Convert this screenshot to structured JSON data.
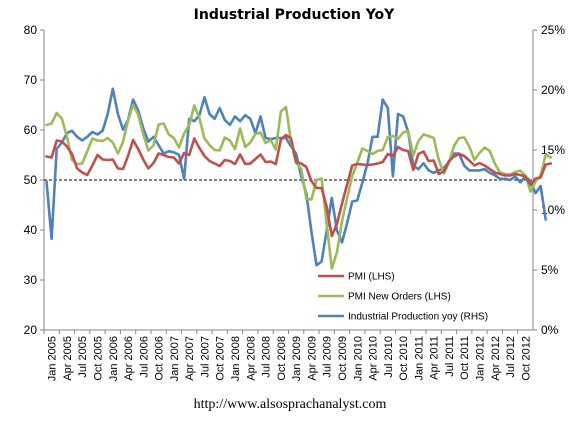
{
  "chart_data": {
    "type": "line",
    "title": "Industrial Production YoY",
    "source_text": "http://www.alsosprachanalyst.com",
    "x_labels": [
      "Jan 2005",
      "Apr 2005",
      "Jul 2005",
      "Oct 2005",
      "Jan 2006",
      "Apr 2006",
      "Jul 2006",
      "Oct 2006",
      "Jan 2007",
      "Apr 2007",
      "Jul 2007",
      "Oct 2007",
      "Jan 2008",
      "Apr 2008",
      "Jul 2008",
      "Oct 2008",
      "Jan 2009",
      "Apr 2009",
      "Jul 2009",
      "Oct 2009",
      "Jan 2010",
      "Apr 2010",
      "Jul 2010",
      "Oct 2010",
      "Jan 2011",
      "Apr 2011",
      "Jul 2011",
      "Oct 2011",
      "Jan 2012",
      "Apr 2012",
      "Jul 2012",
      "Oct 2012"
    ],
    "y_left": {
      "min": 20,
      "max": 80,
      "ticks": [
        20,
        30,
        40,
        50,
        60,
        70,
        80
      ]
    },
    "y_right": {
      "min": 0,
      "max": 25,
      "ticks": [
        "0%",
        "5%",
        "10%",
        "15%",
        "20%",
        "25%"
      ]
    },
    "reference_line": 50,
    "legend_position": "bottom-right",
    "series": [
      {
        "name": "PMI (LHS)",
        "axis": "left",
        "color": "#c0504d",
        "values": [
          54.7,
          54.5,
          57.9,
          57.7,
          56.7,
          55.2,
          52.3,
          51.5,
          51.0,
          52.9,
          55.0,
          54.1,
          54.0,
          54.1,
          52.3,
          52.2,
          54.8,
          58.0,
          56.2,
          54.1,
          52.3,
          53.4,
          55.3,
          55.0,
          54.6,
          54.5,
          53.3,
          55.4,
          55.0,
          58.3,
          56.4,
          54.8,
          53.8,
          53.3,
          52.8,
          54.0,
          53.8,
          53.2,
          55.1,
          53.2,
          53.3,
          54.2,
          55.1,
          53.6,
          53.7,
          53.2,
          58.1,
          59.0,
          58.3,
          53.6,
          53.3,
          52.6,
          49.8,
          48.4,
          48.4,
          44.6,
          38.8,
          41.2,
          45.3,
          49.1,
          52.9,
          53.2,
          53.1,
          53.0,
          53.1,
          53.3,
          53.6,
          55.2,
          54.8,
          56.6,
          56.0,
          55.8,
          52.0,
          55.2,
          55.7,
          53.8,
          53.9,
          51.2,
          51.7,
          53.8,
          54.7,
          55.2,
          54.8,
          53.9,
          52.9,
          53.4,
          52.9,
          52.2,
          51.5,
          51.2,
          50.9,
          50.9,
          51.2,
          51.0,
          50.7,
          49.0,
          50.3,
          50.5,
          53.1,
          53.3
        ]
      },
      {
        "name": "PMI New Orders (LHS)",
        "axis": "left",
        "color": "#9bbb59",
        "values": [
          61.0,
          61.3,
          63.4,
          62.3,
          58.7,
          54.0,
          53.2,
          53.3,
          55.8,
          58.3,
          57.9,
          57.8,
          58.4,
          57.5,
          55.3,
          57.6,
          61.9,
          65.0,
          63.1,
          59.1,
          55.9,
          56.9,
          61.1,
          61.3,
          59.1,
          58.4,
          56.5,
          59.3,
          61.0,
          64.9,
          62.4,
          58.3,
          57.0,
          56.0,
          55.9,
          58.5,
          57.9,
          56.2,
          60.3,
          56.6,
          57.5,
          59.2,
          59.5,
          57.4,
          58.0,
          56.1,
          63.7,
          64.6,
          57.6,
          53.4,
          52.3,
          46.3,
          46.1,
          50.0,
          50.3,
          41.2,
          32.3,
          35.5,
          41.7,
          46.4,
          50.8,
          53.5,
          56.3,
          55.8,
          55.2,
          55.8,
          56.0,
          58.6,
          58.8,
          58.2,
          59.5,
          59.8,
          54.9,
          57.8,
          59.1,
          58.8,
          58.4,
          54.0,
          51.3,
          53.5,
          56.8,
          58.4,
          58.5,
          56.7,
          54.0,
          55.4,
          56.5,
          55.8,
          53.3,
          51.5,
          51.2,
          51.1,
          51.6,
          51.9,
          50.9,
          47.7,
          49.7,
          50.9,
          55.1,
          54.5
        ]
      },
      {
        "name": "Industrial Production yoy (RHS)",
        "axis": "right",
        "color": "#4f81bd",
        "values": [
          12.4,
          7.6,
          15.1,
          15.6,
          16.4,
          16.6,
          16.1,
          15.8,
          16.1,
          16.5,
          16.3,
          16.6,
          18.0,
          20.1,
          18.0,
          16.7,
          17.5,
          19.2,
          18.3,
          16.8,
          15.7,
          16.1,
          15.4,
          14.7,
          14.9,
          14.8,
          14.6,
          12.6,
          17.6,
          17.4,
          17.9,
          19.4,
          18.0,
          17.6,
          18.5,
          17.5,
          17.1,
          17.8,
          17.4,
          17.9,
          17.6,
          16.4,
          17.8,
          16.0,
          15.9,
          16.0,
          16.0,
          16.0,
          15.3,
          14.7,
          12.8,
          11.4,
          8.2,
          5.4,
          5.7,
          8.3,
          11.0,
          8.3,
          7.3,
          8.9,
          10.7,
          10.8,
          12.3,
          13.9,
          16.1,
          16.1,
          19.2,
          18.5,
          12.8,
          18.0,
          17.8,
          16.5,
          13.7,
          13.4,
          13.9,
          13.3,
          13.1,
          13.3,
          13.5,
          14.0,
          14.7,
          14.7,
          13.7,
          13.3,
          13.3,
          13.3,
          13.4,
          13.1,
          12.9,
          12.6,
          12.6,
          12.5,
          12.8,
          12.3,
          12.8,
          12.4,
          11.4,
          12.0,
          9.2
        ]
      }
    ]
  }
}
